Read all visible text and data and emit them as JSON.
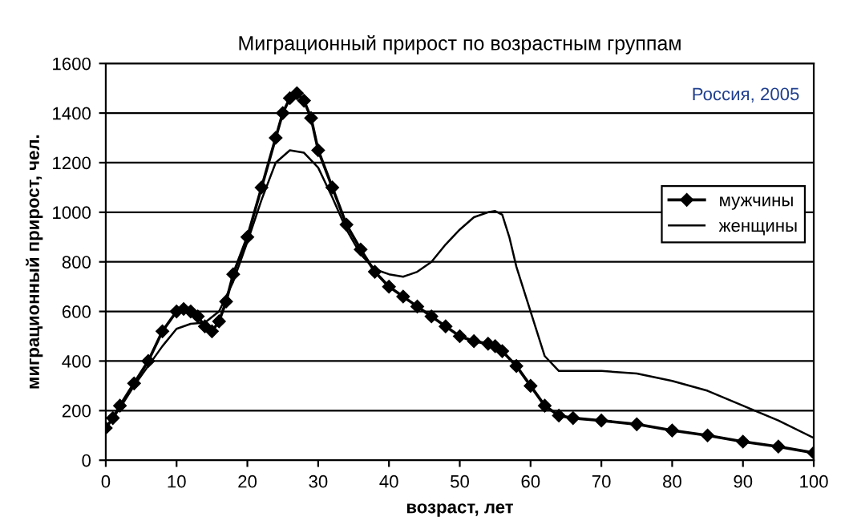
{
  "chart_data": {
    "type": "line",
    "title": "Миграционный прирост по возрастным группам",
    "xlabel": "возраст, лет",
    "ylabel": "миграционный прирост, чел.",
    "annotations": [
      "Россия, 2005"
    ],
    "xlim": [
      0,
      100
    ],
    "xticks": [
      0,
      10,
      20,
      30,
      40,
      50,
      60,
      70,
      80,
      90,
      100
    ],
    "ylim": [
      0,
      1600
    ],
    "yticks": [
      0,
      200,
      400,
      600,
      800,
      1000,
      1200,
      1400,
      1600
    ],
    "grid": "y",
    "legend": "right",
    "series": [
      {
        "name": "мужчины",
        "color": "#000000",
        "marker": "diamond",
        "x": [
          0,
          1,
          2,
          4,
          6,
          8,
          10,
          11,
          12,
          13,
          14,
          15,
          16,
          17,
          18,
          20,
          22,
          24,
          25,
          26,
          27,
          28,
          29,
          30,
          32,
          34,
          36,
          38,
          40,
          42,
          44,
          46,
          48,
          50,
          52,
          54,
          55,
          56,
          58,
          60,
          62,
          64,
          66,
          70,
          75,
          80,
          85,
          90,
          95,
          100
        ],
        "values": [
          130,
          170,
          220,
          310,
          400,
          520,
          600,
          610,
          600,
          580,
          540,
          520,
          560,
          640,
          750,
          900,
          1100,
          1300,
          1400,
          1460,
          1480,
          1450,
          1380,
          1250,
          1100,
          950,
          850,
          760,
          700,
          660,
          620,
          580,
          540,
          500,
          480,
          470,
          460,
          440,
          380,
          300,
          220,
          180,
          170,
          160,
          145,
          120,
          100,
          75,
          55,
          30
        ]
      },
      {
        "name": "женщины",
        "color": "#000000",
        "marker": "none",
        "x": [
          0,
          2,
          4,
          6,
          8,
          10,
          12,
          14,
          16,
          18,
          20,
          22,
          24,
          26,
          28,
          30,
          32,
          34,
          36,
          38,
          40,
          42,
          44,
          46,
          48,
          50,
          52,
          54,
          55,
          56,
          57,
          58,
          60,
          62,
          64,
          66,
          70,
          75,
          80,
          85,
          90,
          95,
          100
        ],
        "values": [
          130,
          210,
          300,
          380,
          460,
          530,
          550,
          555,
          600,
          720,
          880,
          1050,
          1200,
          1250,
          1240,
          1180,
          1060,
          930,
          830,
          770,
          750,
          740,
          760,
          800,
          870,
          930,
          980,
          1000,
          1005,
          990,
          900,
          780,
          600,
          420,
          360,
          360,
          360,
          350,
          320,
          280,
          220,
          160,
          90
        ]
      }
    ]
  }
}
